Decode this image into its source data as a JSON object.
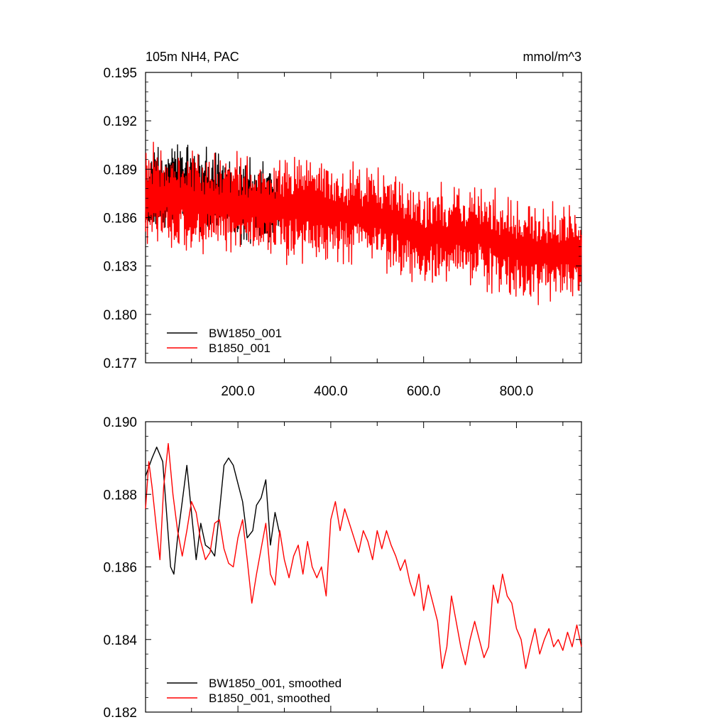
{
  "chart_data": [
    {
      "type": "line",
      "title": "105m NH4, PAC",
      "units": "mmol/m^3",
      "xlabel": "",
      "ylabel": "",
      "xlim": [
        1,
        940
      ],
      "ylim": [
        0.177,
        0.195
      ],
      "xticks": [
        200,
        400,
        600,
        800
      ],
      "xtick_labels": [
        "200.0",
        "400.0",
        "600.0",
        "800.0"
      ],
      "yticks": [
        0.177,
        0.18,
        0.183,
        0.186,
        0.189,
        0.192,
        0.195
      ],
      "ytick_labels": [
        "0.177",
        "0.180",
        "0.183",
        "0.186",
        "0.189",
        "0.192",
        "0.195"
      ],
      "legend_position": "bottom-left",
      "series": [
        {
          "name": "BW1850_001",
          "color": "#000000",
          "x_start": 1,
          "x_end": 290,
          "trend": [
            [
              1,
              0.1875
            ],
            [
              60,
              0.188
            ],
            [
              150,
              0.1875
            ],
            [
              290,
              0.1868
            ]
          ],
          "amplitude": 0.003
        },
        {
          "name": "B1850_001",
          "color": "#ff0000",
          "x_start": 1,
          "x_end": 940,
          "trend": [
            [
              1,
              0.1875
            ],
            [
              100,
              0.187
            ],
            [
              300,
              0.1865
            ],
            [
              500,
              0.1862
            ],
            [
              600,
              0.1848
            ],
            [
              700,
              0.185
            ],
            [
              800,
              0.184
            ],
            [
              940,
              0.1838
            ]
          ],
          "amplitude": 0.0035
        }
      ]
    },
    {
      "type": "line",
      "title": "",
      "xlabel": "",
      "ylabel": "",
      "xlim": [
        1,
        940
      ],
      "ylim": [
        0.182,
        0.19
      ],
      "xticks": [
        200,
        400,
        600,
        800
      ],
      "yticks": [
        0.182,
        0.184,
        0.186,
        0.188,
        0.19
      ],
      "ytick_labels": [
        "0.182",
        "0.184",
        "0.186",
        "0.188",
        "0.190"
      ],
      "legend_position": "bottom-left",
      "series": [
        {
          "name": "BW1850_001, smoothed",
          "color": "#000000",
          "x": [
            1,
            15,
            25,
            38,
            45,
            55,
            62,
            70,
            82,
            90,
            100,
            110,
            120,
            130,
            140,
            150,
            160,
            170,
            180,
            190,
            200,
            210,
            220,
            232,
            240,
            250,
            260,
            270,
            280,
            290
          ],
          "y": [
            0.1885,
            0.189,
            0.1893,
            0.1889,
            0.1877,
            0.186,
            0.1858,
            0.1868,
            0.188,
            0.1888,
            0.1875,
            0.1862,
            0.1872,
            0.1866,
            0.1865,
            0.1863,
            0.1875,
            0.1888,
            0.189,
            0.1888,
            0.1883,
            0.1878,
            0.1868,
            0.187,
            0.1877,
            0.1879,
            0.1884,
            0.1866,
            0.1875,
            0.1869
          ]
        },
        {
          "name": "B1850_001, smoothed",
          "color": "#ff0000",
          "x": [
            1,
            8,
            15,
            25,
            32,
            40,
            50,
            60,
            70,
            80,
            90,
            100,
            110,
            120,
            130,
            140,
            150,
            160,
            170,
            180,
            190,
            200,
            210,
            220,
            230,
            240,
            250,
            260,
            270,
            280,
            290,
            300,
            310,
            320,
            330,
            340,
            350,
            360,
            370,
            380,
            390,
            400,
            410,
            420,
            430,
            440,
            450,
            460,
            470,
            480,
            490,
            500,
            510,
            520,
            530,
            540,
            550,
            560,
            570,
            580,
            590,
            600,
            610,
            620,
            630,
            640,
            650,
            660,
            670,
            680,
            690,
            700,
            710,
            720,
            730,
            740,
            750,
            760,
            770,
            780,
            790,
            800,
            810,
            820,
            830,
            840,
            850,
            860,
            870,
            880,
            890,
            900,
            910,
            920,
            930,
            940
          ],
          "y": [
            0.1876,
            0.1889,
            0.1882,
            0.187,
            0.1862,
            0.1882,
            0.1894,
            0.188,
            0.187,
            0.1863,
            0.187,
            0.1878,
            0.1875,
            0.1867,
            0.1862,
            0.1864,
            0.1872,
            0.1873,
            0.1865,
            0.1861,
            0.186,
            0.1868,
            0.1873,
            0.1862,
            0.185,
            0.1858,
            0.1865,
            0.1872,
            0.1858,
            0.1855,
            0.187,
            0.1862,
            0.1857,
            0.1863,
            0.1866,
            0.1858,
            0.1867,
            0.186,
            0.1857,
            0.186,
            0.1852,
            0.1873,
            0.1878,
            0.187,
            0.1876,
            0.1872,
            0.1868,
            0.1864,
            0.187,
            0.1867,
            0.1862,
            0.187,
            0.1865,
            0.187,
            0.1866,
            0.1863,
            0.1859,
            0.1862,
            0.1856,
            0.1852,
            0.1858,
            0.1848,
            0.1855,
            0.185,
            0.1845,
            0.1832,
            0.1838,
            0.1852,
            0.1845,
            0.1838,
            0.1833,
            0.184,
            0.1845,
            0.184,
            0.1835,
            0.1838,
            0.1855,
            0.185,
            0.1858,
            0.1852,
            0.185,
            0.1843,
            0.184,
            0.1832,
            0.1838,
            0.1843,
            0.1836,
            0.184,
            0.1843,
            0.1838,
            0.184,
            0.1837,
            0.1842,
            0.1838,
            0.1844,
            0.1838
          ]
        }
      ]
    }
  ]
}
